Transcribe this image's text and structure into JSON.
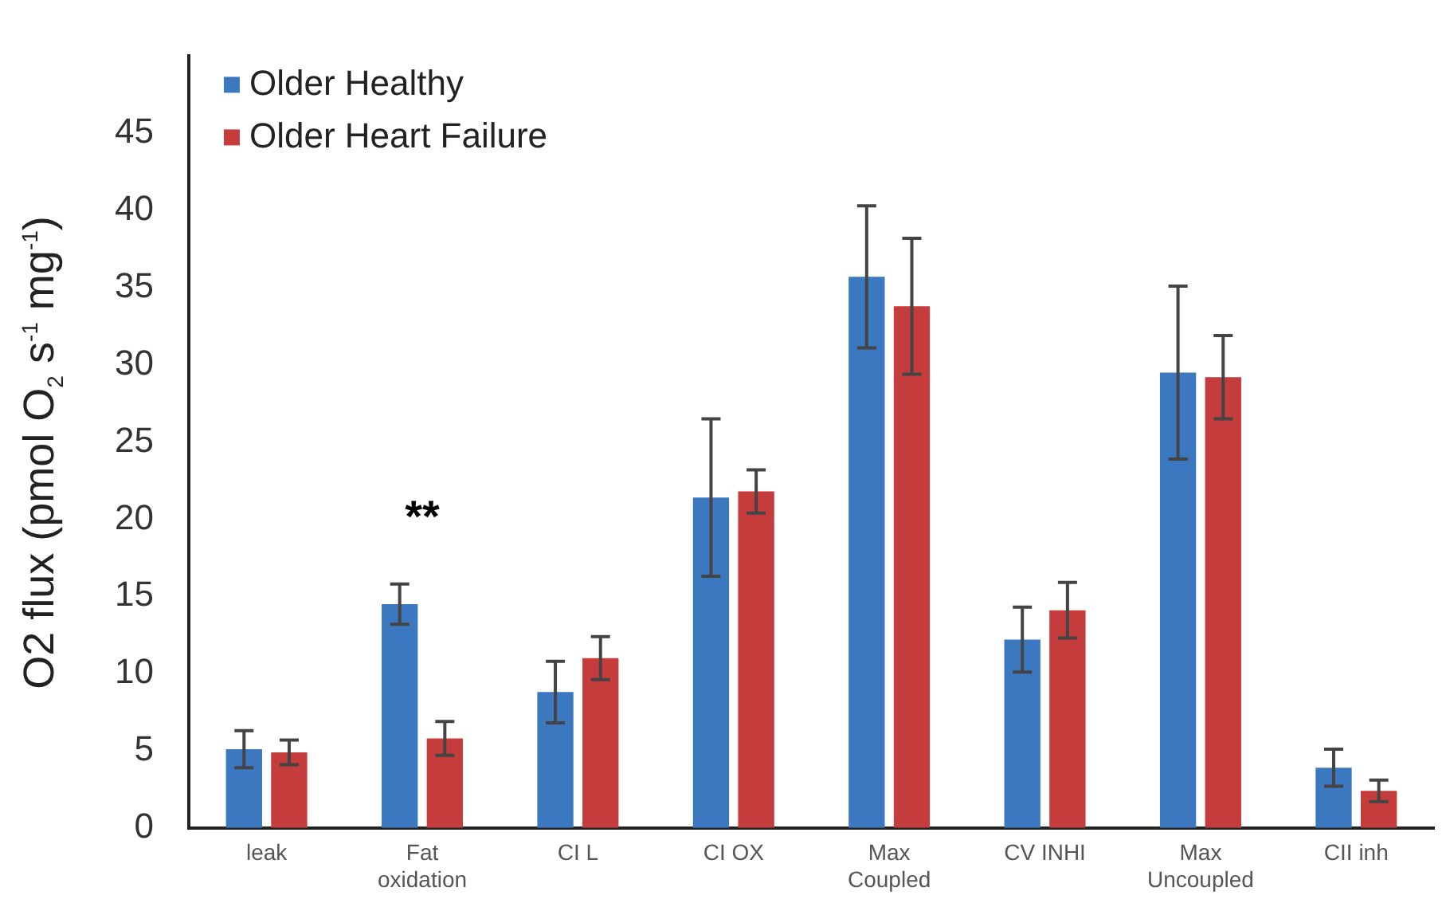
{
  "chart_data": {
    "type": "bar",
    "ylabel": "O2 flux (pmol O$_{2}$ s$^{-1}$ mg$^{-1}$)",
    "categories": [
      "leak",
      "Fat oxidation",
      "CI L",
      "CI OX",
      "Max Coupled",
      "CV INHI",
      "Max Uncoupled",
      "CII inh"
    ],
    "series": [
      {
        "name": "Older Healthy",
        "color": "#3b78c0",
        "values": [
          5.1,
          14.5,
          8.8,
          21.4,
          35.7,
          12.2,
          29.5,
          3.9
        ],
        "errors": [
          1.2,
          1.3,
          2.0,
          5.1,
          4.6,
          2.1,
          5.6,
          1.2
        ]
      },
      {
        "name": "Older Heart Failure",
        "color": "#c43c3c",
        "values": [
          4.9,
          5.8,
          11.0,
          21.8,
          33.8,
          14.1,
          29.2,
          2.4
        ],
        "errors": [
          0.8,
          1.1,
          1.4,
          1.4,
          4.4,
          1.8,
          2.7,
          0.7
        ]
      }
    ],
    "ylim": [
      0,
      50
    ],
    "yticks": [
      0,
      5,
      10,
      15,
      20,
      25,
      30,
      35,
      40,
      45
    ],
    "grid": false,
    "legend": "top left",
    "annotations": [
      "**"
    ]
  }
}
